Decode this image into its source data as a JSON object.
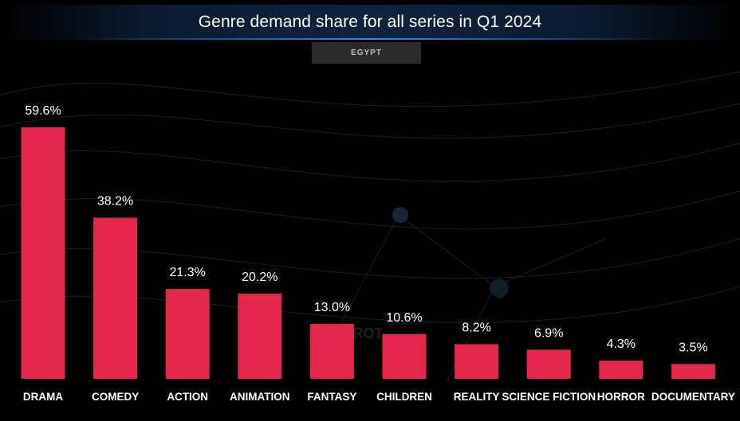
{
  "title": "Genre demand share for all series in Q1 2024",
  "subtitle": "EGYPT",
  "watermark": "PARROT",
  "colors": {
    "bar": "#e3284c",
    "label": "#ffffff",
    "background": "#000000"
  },
  "chart_data": {
    "type": "bar",
    "title": "Genre demand share for all series in Q1 2024",
    "subtitle": "EGYPT",
    "categories": [
      "DRAMA",
      "COMEDY",
      "ACTION",
      "ANIMATION",
      "FANTASY",
      "CHILDREN",
      "REALITY",
      "SCIENCE FICTION",
      "HORROR",
      "DOCUMENTARY"
    ],
    "values": [
      59.6,
      38.2,
      21.3,
      20.2,
      13.0,
      10.6,
      8.2,
      6.9,
      4.3,
      3.5
    ],
    "value_labels": [
      "59.6%",
      "38.2%",
      "21.3%",
      "20.2%",
      "13.0%",
      "10.6%",
      "8.2%",
      "6.9%",
      "4.3%",
      "3.5%"
    ],
    "xlabel": "",
    "ylabel": "",
    "ylim": [
      0,
      59.6
    ],
    "grid": false,
    "legend": "none"
  }
}
